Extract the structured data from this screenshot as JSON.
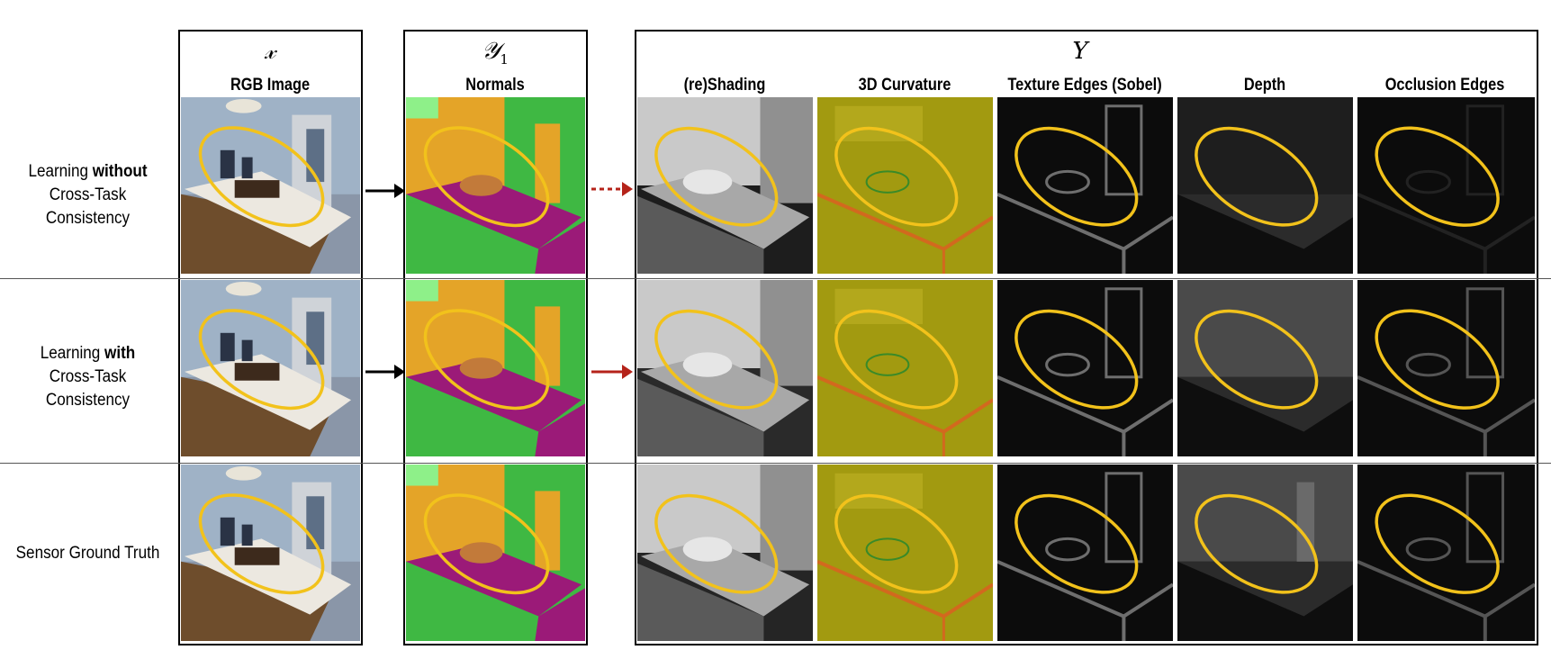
{
  "columns": {
    "x_symbol": "𝓍",
    "y1_symbol": "𝒴",
    "y1_subscript": "1",
    "Y_symbol": "Y",
    "input_header": "RGB Image",
    "normals_header": "Normals",
    "target_headers": [
      "(re)Shading",
      "3D Curvature",
      "Texture Edges (Sobel)",
      "Depth",
      "Occlusion Edges"
    ]
  },
  "rows": [
    {
      "label_line1_prefix": "Learning ",
      "label_line1_bold": "without",
      "label_line2": "Cross-Task Consistency"
    },
    {
      "label_line1_prefix": "Learning ",
      "label_line1_bold": "with",
      "label_line2": "Cross-Task Consistency"
    },
    {
      "label_line1_prefix": "Sensor Ground Truth",
      "label_line1_bold": "",
      "label_line2": ""
    }
  ],
  "colors": {
    "highlight_ellipse": "#f2c21b",
    "arrow_black": "#000000",
    "arrow_red": "#b5231a",
    "normals_green": "#3fb843",
    "normals_orange": "#e4a428",
    "normals_magenta": "#9b1a78",
    "curvature_olive": "#a29a10"
  }
}
